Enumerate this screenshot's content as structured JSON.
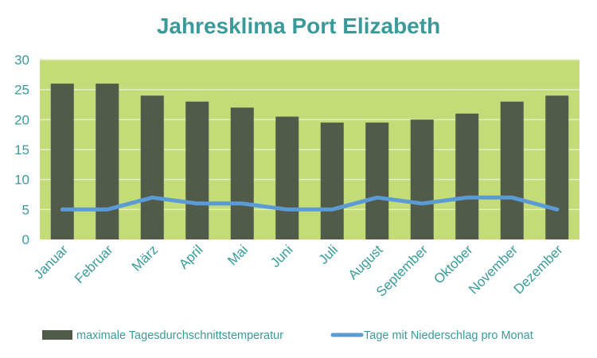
{
  "chart_data": {
    "type": "bar",
    "title": "Jahresklima Port Elizabeth",
    "categories": [
      "Januar",
      "Februar",
      "März",
      "April",
      "Mai",
      "Juni",
      "Juli",
      "August",
      "September",
      "Oktober",
      "November",
      "Dezember"
    ],
    "series": [
      {
        "name": "maximale Tagesdurchschnittstemperatur",
        "type": "bar",
        "color": "#525a49",
        "values": [
          26,
          26,
          24,
          23,
          22,
          20.5,
          19.5,
          19.5,
          20,
          21,
          23,
          24
        ]
      },
      {
        "name": "Tage mit Niederschlag pro Monat",
        "type": "line",
        "color": "#5b9bd5",
        "values": [
          5,
          5,
          7,
          6,
          6,
          5,
          5,
          7,
          6,
          7,
          7,
          5
        ]
      }
    ],
    "ylim": [
      0,
      30
    ],
    "yticks": [
      0,
      5,
      10,
      15,
      20,
      25,
      30
    ],
    "grid": true,
    "legend": "bottom",
    "colors": {
      "title": "#3a9a9a",
      "axis_text": "#3a9a9a",
      "plot_background": "#c4dc78",
      "gridline": "#e4eec4",
      "legend_text": "#3a9a9a"
    }
  }
}
